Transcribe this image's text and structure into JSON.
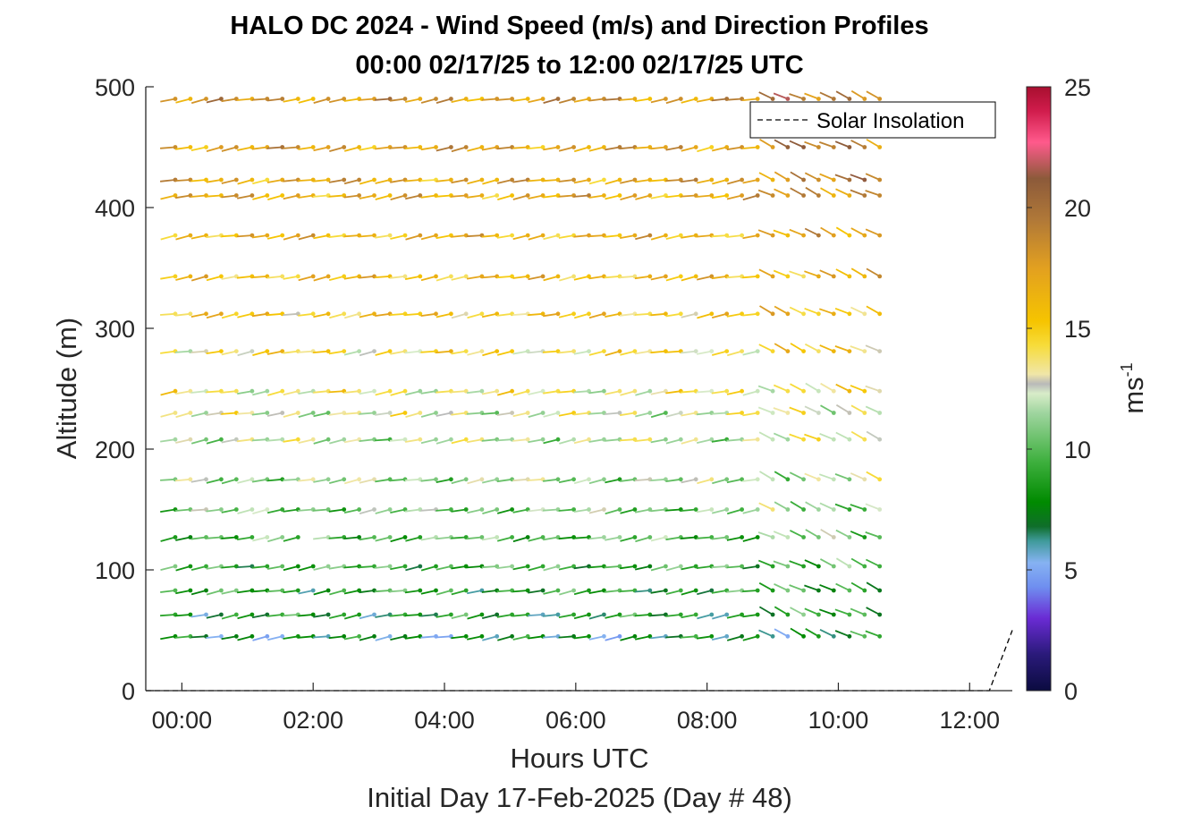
{
  "chart_data": {
    "type": "wind-barb-profile",
    "title_line1": "HALO DC 2024 - Wind Speed (m/s) and Direction Profiles",
    "title_line2": "00:00 02/17/25 to 12:00 02/17/25  UTC",
    "xlabel": "Hours UTC",
    "xlabel2": "Initial Day 17-Feb-2025 (Day # 48)",
    "ylabel": "Altitude (m)",
    "xlim": [
      -0.55,
      12.65
    ],
    "ylim": [
      0,
      500
    ],
    "x_ticks": [
      0,
      2,
      4,
      6,
      8,
      10,
      12
    ],
    "x_tick_labels": [
      "00:00",
      "02:00",
      "04:00",
      "06:00",
      "08:00",
      "10:00",
      "12:00"
    ],
    "y_ticks": [
      0,
      100,
      200,
      300,
      400,
      500
    ],
    "y_tick_labels": [
      "0",
      "100",
      "200",
      "300",
      "400",
      "500"
    ],
    "colorbar": {
      "label": "ms",
      "label_exponent": "-1",
      "lim": [
        0,
        25
      ],
      "ticks": [
        0,
        5,
        10,
        15,
        20,
        25
      ],
      "tick_labels": [
        "0",
        "5",
        "10",
        "15",
        "20",
        "25"
      ],
      "stops": [
        [
          0,
          "#0b0b40"
        ],
        [
          1.5,
          "#2a1a7a"
        ],
        [
          3,
          "#6a2bd4"
        ],
        [
          4.3,
          "#6f8ff0"
        ],
        [
          5.3,
          "#86b2f2"
        ],
        [
          6.2,
          "#3f9a9a"
        ],
        [
          6.8,
          "#0f6e2a"
        ],
        [
          7.8,
          "#008a00"
        ],
        [
          9.5,
          "#3fb03f"
        ],
        [
          11.5,
          "#9fd59f"
        ],
        [
          12.3,
          "#d8ecc8"
        ],
        [
          12.7,
          "#b9b9b9"
        ],
        [
          13.1,
          "#f0e6a8"
        ],
        [
          14.3,
          "#f7dc3a"
        ],
        [
          15.3,
          "#f6c400"
        ],
        [
          17.5,
          "#e2a020"
        ],
        [
          19.5,
          "#b07838"
        ],
        [
          21.2,
          "#8c5a3a"
        ],
        [
          22.7,
          "#ff5a8c"
        ],
        [
          24,
          "#d01c4c"
        ],
        [
          25,
          "#a80f2f"
        ]
      ]
    },
    "altitudes": [
      45,
      63,
      83,
      103,
      127,
      150,
      175,
      208,
      230,
      248,
      281,
      312,
      343,
      377,
      410,
      423,
      450,
      490
    ],
    "times": [
      -0.1,
      0.13,
      0.37,
      0.6,
      0.83,
      1.07,
      1.3,
      1.53,
      1.77,
      2.0,
      2.23,
      2.47,
      2.7,
      2.93,
      3.17,
      3.4,
      3.63,
      3.87,
      4.1,
      4.33,
      4.57,
      4.8,
      5.03,
      5.27,
      5.5,
      5.73,
      5.97,
      6.2,
      6.43,
      6.67,
      6.9,
      7.13,
      7.37,
      7.6,
      7.83,
      8.07,
      8.3,
      8.53,
      8.77,
      9.0,
      9.23,
      9.47,
      9.7,
      9.93,
      10.17,
      10.4,
      10.63
    ],
    "speed_profile_ms": [
      [
        45,
        7.0
      ],
      [
        63,
        8.0
      ],
      [
        83,
        8.6
      ],
      [
        103,
        9.2
      ],
      [
        127,
        9.8
      ],
      [
        150,
        10.5
      ],
      [
        175,
        11.2
      ],
      [
        208,
        12.0
      ],
      [
        230,
        12.5
      ],
      [
        248,
        13.3
      ],
      [
        281,
        14.1
      ],
      [
        312,
        15.2
      ],
      [
        343,
        15.7
      ],
      [
        377,
        16.2
      ],
      [
        410,
        16.7
      ],
      [
        423,
        17.0
      ],
      [
        450,
        17.3
      ],
      [
        490,
        17.8
      ]
    ],
    "direction_from_deg_early": 260,
    "direction_from_deg_late": 295,
    "direction_shift_time_h": 8.8,
    "missing_sample": {
      "time_h": 2.0,
      "altitude_m": 127
    },
    "legend": {
      "label": "Solar Insolation",
      "location": "top-right"
    },
    "solar_insolation": {
      "x": [
        -0.55,
        12.3,
        12.65
      ],
      "y": [
        0,
        0,
        50
      ]
    }
  }
}
